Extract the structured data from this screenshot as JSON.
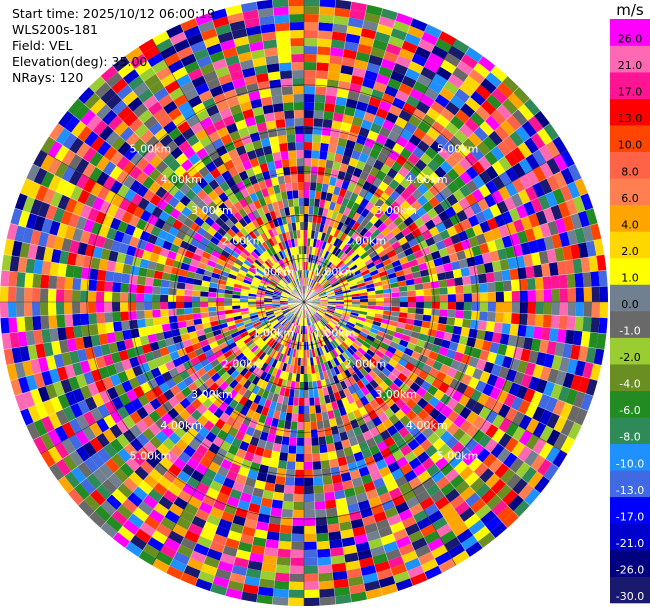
{
  "header": {
    "start_time": "Start time: 2025/10/12 06:00:19",
    "instrument": "WLS200s-181",
    "field": "Field: VEL",
    "elevation": "Elevation(deg): 35.00",
    "nrays": "NRays: 120"
  },
  "chart_data": {
    "type": "heatmap",
    "projection": "polar (PPI scan)",
    "field": "VEL",
    "elevation_deg": 35.0,
    "n_rays": 120,
    "max_range_km": 7,
    "range_rings": [
      {
        "label": "1.00km",
        "range_km": 1
      },
      {
        "label": "2.00km",
        "range_km": 2
      },
      {
        "label": "3.00km",
        "range_km": 3
      },
      {
        "label": "4.00km",
        "range_km": 4
      },
      {
        "label": "5.00km",
        "range_km": 5
      }
    ],
    "colorbar": {
      "unit": "m/s",
      "bounds": [
        -30.0,
        -26.0,
        -21.0,
        -17.0,
        -13.0,
        -10.0,
        -8.0,
        -6.0,
        -4.0,
        -2.0,
        -1.0,
        0.0,
        1.0,
        2.0,
        4.0,
        6.0,
        8.0,
        10.0,
        13.0,
        17.0,
        21.0,
        26.0,
        30.0
      ],
      "tick_labels": [
        "-30.0",
        "-26.0",
        "-21.0",
        "-17.0",
        "-13.0",
        "-10.0",
        "-8.0",
        "-6.0",
        "-4.0",
        "-2.0",
        "-1.0",
        "0.0",
        "1.0",
        "2.0",
        "4.0",
        "6.0",
        "8.0",
        "10.0",
        "13.0",
        "17.0",
        "21.0",
        "26.0"
      ],
      "colors": [
        "#191970",
        "#000080",
        "#0000cd",
        "#0000ff",
        "#4169e1",
        "#1e90ff",
        "#2e8b57",
        "#228b22",
        "#6b8e23",
        "#9acd32",
        "#696969",
        "#708090",
        "#ffff00",
        "#ffd700",
        "#ffa500",
        "#ff7f50",
        "#ff6347",
        "#ff4500",
        "#ff0000",
        "#ff1493",
        "#ff69b4",
        "#ff00ff"
      ]
    }
  }
}
